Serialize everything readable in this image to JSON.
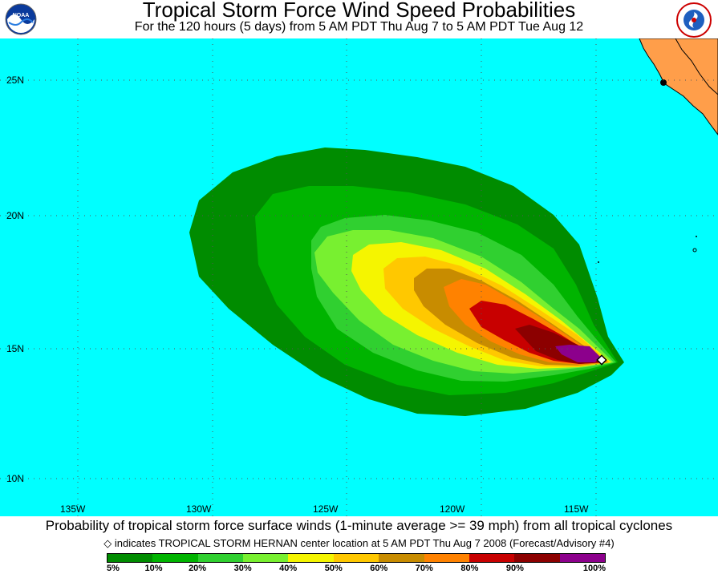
{
  "header": {
    "title": "Tropical Storm Force Wind Speed Probabilities",
    "subtitle": "For the 120 hours (5 days) from 5 AM PDT Thu Aug 7 to 5 AM PDT Tue Aug 12",
    "logo_left": "NOAA",
    "logo_right": "NATIONAL WEATHER SERVICE"
  },
  "map": {
    "ocean_color": "#00ffff",
    "land_color": "#ff9e4a",
    "lat_labels": [
      "25N",
      "20N",
      "15N",
      "10N"
    ],
    "lon_labels": [
      "135W",
      "130W",
      "125W",
      "120W",
      "115W"
    ],
    "storm": {
      "name": "TROPICAL STORM HERNAN",
      "center_lat": 14.6,
      "center_lon": -114.5,
      "marker": "diamond"
    }
  },
  "probability_bands": [
    {
      "min": 5,
      "color": "#00b400"
    },
    {
      "min": 10,
      "color": "#10c810"
    },
    {
      "min": 20,
      "color": "#40e040"
    },
    {
      "min": 30,
      "color": "#88ff40"
    },
    {
      "min": 40,
      "color": "#ffff00"
    },
    {
      "min": 50,
      "color": "#ffd700"
    },
    {
      "min": 60,
      "color": "#d0900a"
    },
    {
      "min": 70,
      "color": "#ff8c00"
    },
    {
      "min": 80,
      "color": "#cc0000"
    },
    {
      "min": 90,
      "color": "#8b0000"
    },
    {
      "min": 100,
      "color": "#8b008b"
    }
  ],
  "footer": {
    "main": "Probability of tropical storm force surface winds (1-minute average >= 39 mph) from all tropical cyclones",
    "note": "indicates TROPICAL STORM HERNAN center location at 5 AM PDT Thu Aug 7 2008 (Forecast/Advisory #4)",
    "note_marker": "◇"
  },
  "legend": {
    "colors": [
      "#008c00",
      "#00b400",
      "#30d030",
      "#78f030",
      "#f5f500",
      "#ffc800",
      "#c88c00",
      "#ff8200",
      "#c80000",
      "#8c0000",
      "#8c008c"
    ],
    "labels": [
      "5%",
      "10%",
      "20%",
      "30%",
      "40%",
      "50%",
      "60%",
      "70%",
      "80%",
      "90%",
      "100%"
    ]
  }
}
